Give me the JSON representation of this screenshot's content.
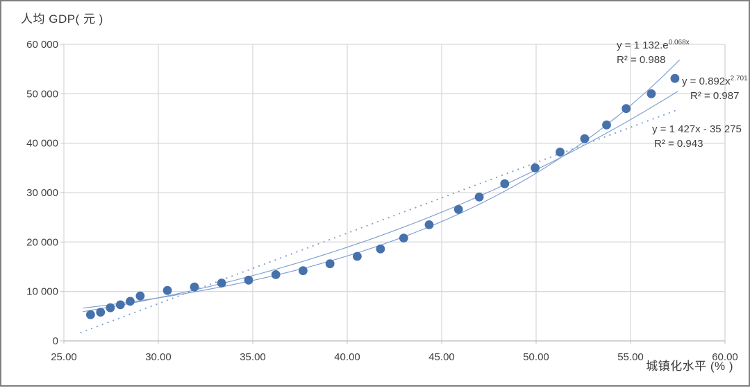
{
  "chart_data": {
    "type": "scatter",
    "title": "人均 GDP( 元 )",
    "xlabel": "城镇化水平 (% )",
    "ylabel": "",
    "xlim": [
      25,
      60
    ],
    "ylim": [
      0,
      60000
    ],
    "grid": true,
    "legend": "none",
    "x_tick_values": [
      25,
      30,
      35,
      40,
      45,
      50,
      55,
      60
    ],
    "x_tick_labels": [
      "25.00",
      "30.00",
      "35.00",
      "40.00",
      "45.00",
      "50.00",
      "55.00",
      "60.00"
    ],
    "y_tick_values": [
      0,
      10000,
      20000,
      30000,
      40000,
      50000,
      60000
    ],
    "y_tick_labels": [
      "0",
      "10 000",
      "20 000",
      "30 000",
      "40 000",
      "50 000",
      "60 000"
    ],
    "points": [
      [
        26.41,
        5300
      ],
      [
        26.94,
        5800
      ],
      [
        27.46,
        6700
      ],
      [
        27.99,
        7300
      ],
      [
        28.51,
        8000
      ],
      [
        29.04,
        9100
      ],
      [
        30.48,
        10200
      ],
      [
        31.91,
        10900
      ],
      [
        33.35,
        11700
      ],
      [
        34.78,
        12300
      ],
      [
        36.22,
        13400
      ],
      [
        37.66,
        14200
      ],
      [
        39.09,
        15600
      ],
      [
        40.53,
        17100
      ],
      [
        41.76,
        18600
      ],
      [
        42.99,
        20800
      ],
      [
        44.34,
        23500
      ],
      [
        45.89,
        26600
      ],
      [
        46.99,
        29100
      ],
      [
        48.34,
        31800
      ],
      [
        49.95,
        35000
      ],
      [
        51.27,
        38200
      ],
      [
        52.57,
        40900
      ],
      [
        53.73,
        43700
      ],
      [
        54.77,
        47000
      ],
      [
        56.1,
        50000
      ],
      [
        57.35,
        53100
      ]
    ],
    "trendlines": [
      {
        "name": "exponential",
        "a": 1132,
        "b": 0.068,
        "x_range": [
          26.0,
          57.6
        ],
        "line_style": "solid",
        "label_base": "y = 1 132.e",
        "label_sup": "0.068x",
        "r2_label": "R² = 0.988"
      },
      {
        "name": "power",
        "a": 0.892,
        "b": 2.701,
        "x_range": [
          26.0,
          57.5
        ],
        "line_style": "solid",
        "label_base": "y = 0.892x",
        "label_sup": "2.701",
        "r2_label": "R² = 0.987"
      },
      {
        "name": "linear",
        "a": 1427,
        "b": -35275,
        "x_range": [
          25.9,
          57.6
        ],
        "line_style": "dotted",
        "label_base": "y = 1 427x - 35 275",
        "label_sup": "",
        "r2_label": "R² = 0.943"
      }
    ],
    "colors": {
      "marker": "#4671ab",
      "trendline": "#7e9fd0",
      "grid": "#d9d9d9",
      "axis": "#c0c0c0",
      "text": "#404040"
    }
  }
}
